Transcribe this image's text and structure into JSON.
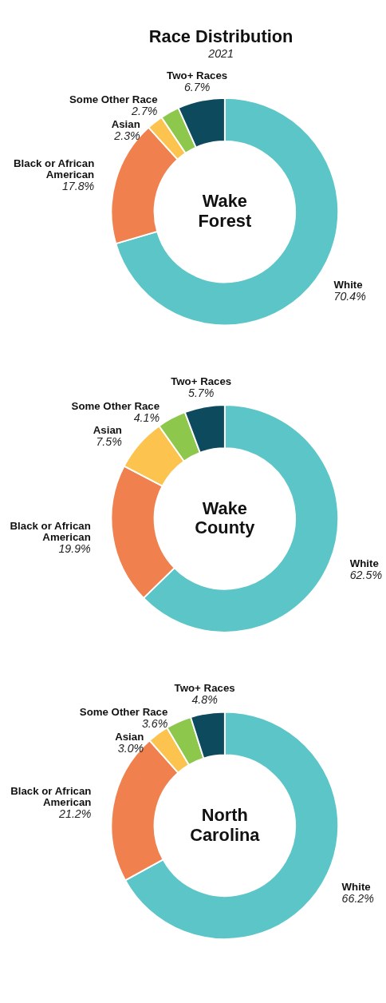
{
  "chart_data": [
    {
      "type": "donut",
      "title": "Race Distribution",
      "subtitle": "2021",
      "categories": [
        "White",
        "Black or African American",
        "Asian",
        "Some Other Race",
        "Two+ Races"
      ],
      "values": [
        70.4,
        17.8,
        2.3,
        2.7,
        6.7
      ],
      "value_labels": [
        "70.4%",
        "17.8%",
        "2.3%",
        "2.7%",
        "6.7%"
      ],
      "colors": [
        "#5bc5c8",
        "#f0804e",
        "#fcc34f",
        "#8dc74c",
        "#0d4a5e"
      ],
      "annotations": [
        "Wake Forest"
      ]
    },
    {
      "type": "donut",
      "categories": [
        "White",
        "Black or African American",
        "Asian",
        "Some Other Race",
        "Two+ Races"
      ],
      "values": [
        62.5,
        19.9,
        7.5,
        4.1,
        5.7
      ],
      "value_labels": [
        "62.5%",
        "19.9%",
        "7.5%",
        "4.1%",
        "5.7%"
      ],
      "colors": [
        "#5bc5c8",
        "#f0804e",
        "#fcc34f",
        "#8dc74c",
        "#0d4a5e"
      ],
      "annotations": [
        "Wake County"
      ]
    },
    {
      "type": "donut",
      "categories": [
        "White",
        "Black or African American",
        "Asian",
        "Some Other Race",
        "Two+ Races"
      ],
      "values": [
        66.2,
        21.2,
        3.0,
        3.6,
        4.8
      ],
      "value_labels": [
        "66.2%",
        "21.2%",
        "3.0%",
        "3.6%",
        "4.8%"
      ],
      "colors": [
        "#5bc5c8",
        "#f0804e",
        "#fcc34f",
        "#8dc74c",
        "#0d4a5e"
      ],
      "annotations": [
        "North Carolina"
      ]
    }
  ]
}
